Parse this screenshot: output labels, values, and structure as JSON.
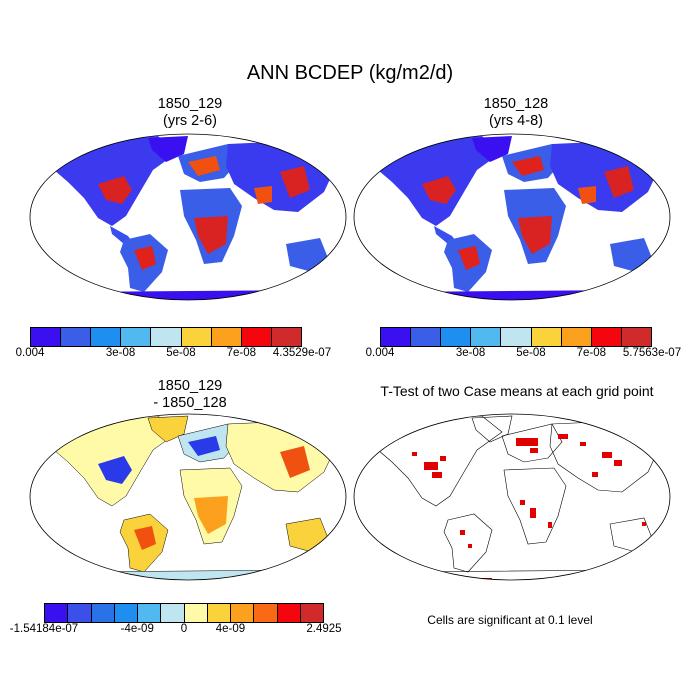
{
  "title": "ANN BCDEP (kg/m2/d)",
  "panels": [
    {
      "title1": "1850_129",
      "title2": "(yrs 2-6)"
    },
    {
      "title1": "1850_128",
      "title2": "(yrs 4-8)"
    },
    {
      "title1": "1850_129",
      "title2": "- 1850_128"
    },
    {
      "title1": "T-Test of two Case means at each grid point",
      "title2": ""
    }
  ],
  "colorbars": {
    "mean1": {
      "colors": [
        "#3a0ff0",
        "#3b5ee8",
        "#1e8ff0",
        "#52b8f0",
        "#bfe6f0",
        "#fad33c",
        "#fca11e",
        "#f5060f",
        "#d02a2a"
      ],
      "labels": [
        "0.004",
        "3e-08",
        "5e-08",
        "7e-08",
        "4.3529e-07"
      ]
    },
    "mean2": {
      "colors": [
        "#3a0ff0",
        "#3b5ee8",
        "#1e8ff0",
        "#52b8f0",
        "#bfe6f0",
        "#fad33c",
        "#fca11e",
        "#f5060f",
        "#d02a2a"
      ],
      "labels": [
        "0.004",
        "3e-08",
        "5e-08",
        "7e-08",
        "5.7563e-07"
      ]
    },
    "diff": {
      "colors": [
        "#3a0ff0",
        "#3b50e8",
        "#2a72e8",
        "#1e8ff0",
        "#52b8f0",
        "#bfe6f0",
        "#fffaa8",
        "#fad33c",
        "#fca11e",
        "#fa6a14",
        "#f5060f",
        "#d02a2a"
      ],
      "labels": [
        "-1.54184e-07",
        "-4e-09",
        "0",
        "4e-09",
        "2.4925"
      ]
    }
  },
  "note": "Cells are significant at 0.1 level"
}
